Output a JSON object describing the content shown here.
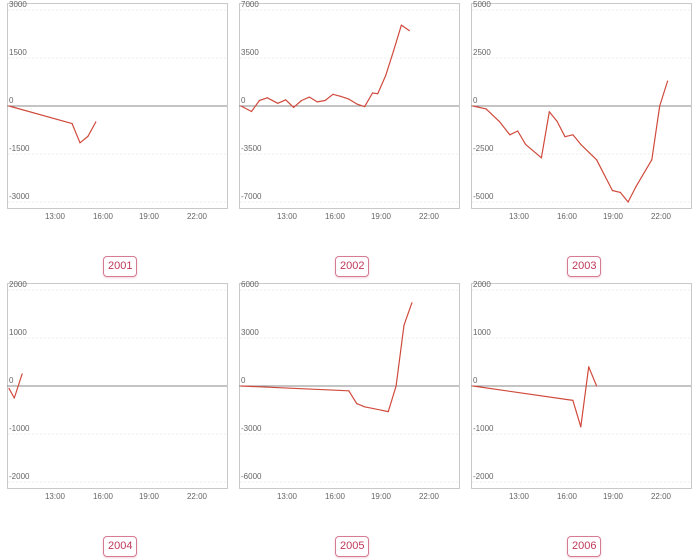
{
  "colors": {
    "line": "#d04a3c",
    "frame": "#c9c9c9",
    "grid": "#ececec",
    "zero": "#8a8a8a",
    "text": "#666666"
  },
  "chart_data": [
    {
      "type": "line",
      "label": "2001",
      "x_ticks": [
        "13:00",
        "16:00",
        "19:00",
        "22:00"
      ],
      "y_ticks": [
        3000,
        1500,
        0,
        -1500,
        -3000
      ],
      "ylim": [
        -3000,
        3000
      ],
      "x": [
        "10:00",
        "14:00",
        "14:30",
        "15:00",
        "15:30"
      ],
      "y": [
        0,
        -550,
        -1150,
        -950,
        -500
      ]
    },
    {
      "type": "line",
      "label": "2002",
      "x_ticks": [
        "13:00",
        "16:00",
        "19:00",
        "22:00"
      ],
      "y_ticks": [
        7000,
        3500,
        0,
        -3500,
        -7000
      ],
      "ylim": [
        -7000,
        7000
      ],
      "x": [
        "10:00",
        "10:40",
        "11:10",
        "11:40",
        "12:20",
        "12:50",
        "13:20",
        "13:50",
        "14:20",
        "14:50",
        "15:20",
        "15:50",
        "16:20",
        "16:50",
        "17:20",
        "17:50",
        "18:20",
        "18:40",
        "19:10",
        "19:40",
        "20:10",
        "20:40"
      ],
      "y": [
        0,
        -400,
        400,
        600,
        200,
        450,
        -100,
        400,
        650,
        300,
        400,
        850,
        700,
        500,
        150,
        -50,
        950,
        900,
        2200,
        4000,
        5900,
        5500
      ]
    },
    {
      "type": "line",
      "label": "2003",
      "x_ticks": [
        "13:00",
        "16:00",
        "19:00",
        "22:00"
      ],
      "y_ticks": [
        5000,
        2500,
        0,
        -2500,
        -5000
      ],
      "ylim": [
        -5000,
        5000
      ],
      "x": [
        "10:00",
        "10:50",
        "11:40",
        "12:20",
        "12:50",
        "13:20",
        "14:20",
        "14:50",
        "15:20",
        "15:50",
        "16:20",
        "16:50",
        "17:50",
        "18:50",
        "19:20",
        "19:50",
        "20:20",
        "21:20",
        "21:50",
        "22:20"
      ],
      "y": [
        0,
        -150,
        -800,
        -1500,
        -1300,
        -2000,
        -2700,
        -300,
        -800,
        -1600,
        -1500,
        -2000,
        -2800,
        -4400,
        -4500,
        -5000,
        -4200,
        -2800,
        0,
        1300
      ]
    },
    {
      "type": "line",
      "label": "2004",
      "x_ticks": [
        "13:00",
        "16:00",
        "19:00",
        "22:00"
      ],
      "y_ticks": [
        2000,
        1000,
        0,
        -1000,
        -2000
      ],
      "ylim": [
        -2000,
        2000
      ],
      "x": [
        "10:00",
        "10:20",
        "10:50"
      ],
      "y": [
        -50,
        -250,
        250
      ]
    },
    {
      "type": "line",
      "label": "2005",
      "x_ticks": [
        "13:00",
        "16:00",
        "19:00",
        "22:00"
      ],
      "y_ticks": [
        6000,
        3000,
        0,
        -3000,
        -6000
      ],
      "ylim": [
        -6000,
        6000
      ],
      "x": [
        "10:00",
        "16:50",
        "17:20",
        "17:50",
        "19:20",
        "19:50",
        "20:20",
        "20:50"
      ],
      "y": [
        0,
        -300,
        -1100,
        -1300,
        -1600,
        0,
        3800,
        5200
      ]
    },
    {
      "type": "line",
      "label": "2006",
      "x_ticks": [
        "13:00",
        "16:00",
        "19:00",
        "22:00"
      ],
      "y_ticks": [
        2000,
        1000,
        0,
        -1000,
        -2000
      ],
      "ylim": [
        -2000,
        2000
      ],
      "x": [
        "10:00",
        "16:20",
        "16:50",
        "17:20",
        "17:50"
      ],
      "y": [
        0,
        -300,
        -850,
        400,
        0
      ]
    }
  ]
}
